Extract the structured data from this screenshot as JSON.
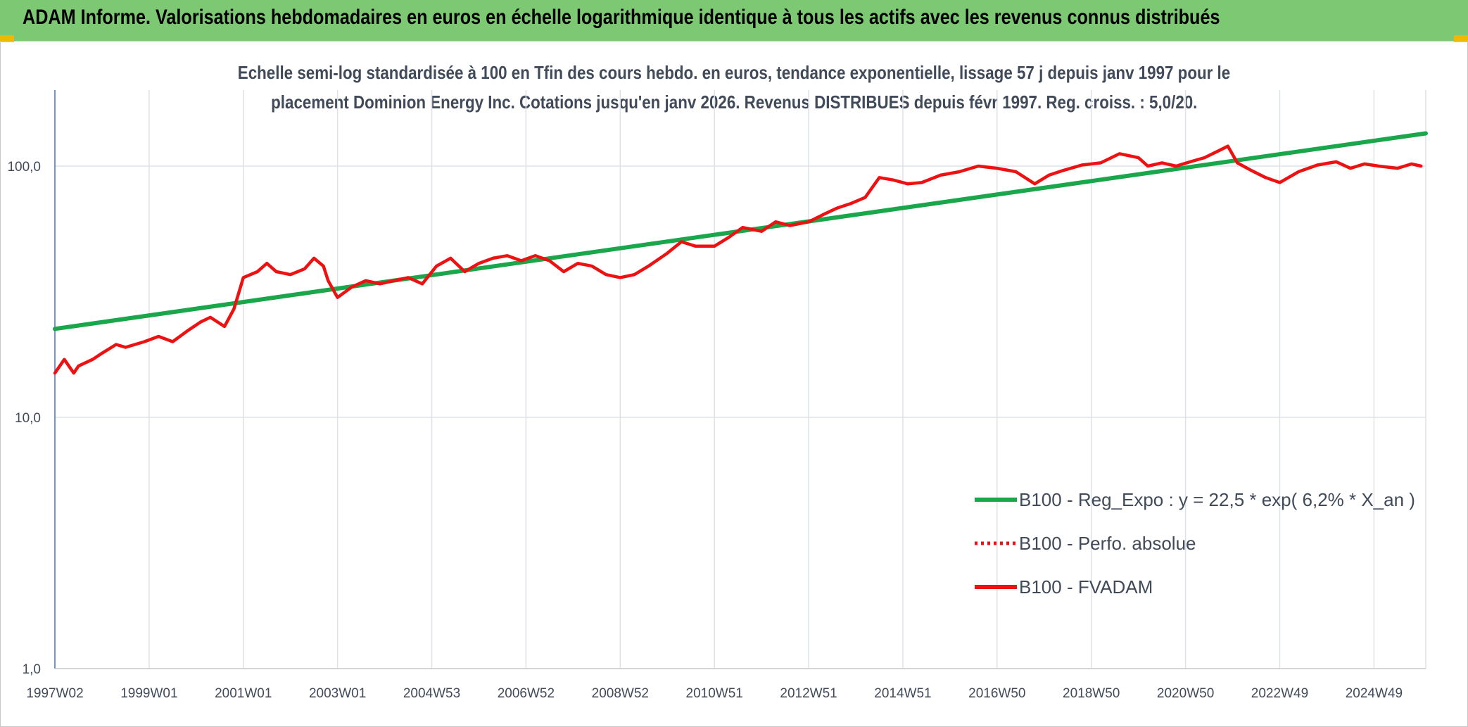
{
  "header": {
    "title": "ADAM Informe. Valorisations hebdomadaires en euros en échelle logarithmique identique à tous les actifs avec les revenus connus distribués"
  },
  "chart_data": {
    "type": "line",
    "title_line1": "Echelle semi-log standardisée à 100 en Tfin des cours hebdo. en euros, tendance exponentielle, lissage 57 j depuis janv 1997 pour le",
    "title_line2": "placement Dominion Energy Inc. Cotations jusqu'en janv 2026. Revenus DISTRIBUES depuis févr 1997. Reg. croiss. : 5,0/20.",
    "y_scale": "log",
    "ylim": [
      1,
      200
    ],
    "yticks": [
      1,
      10,
      100
    ],
    "ytick_labels": [
      "1,0",
      "10,0",
      "100,0"
    ],
    "x_range": [
      1997.0,
      2026.1
    ],
    "xticks": [
      1997.0,
      1999.0,
      2001.0,
      2003.0,
      2005.0,
      2007.0,
      2009.0,
      2011.0,
      2013.0,
      2015.0,
      2017.0,
      2019.0,
      2021.0,
      2023.0,
      2025.0
    ],
    "xtick_labels": [
      "1997W02",
      "1999W01",
      "2001W01",
      "2003W01",
      "2004W53",
      "2006W52",
      "2008W52",
      "2010W51",
      "2012W51",
      "2014W51",
      "2016W50",
      "2018W50",
      "2020W50",
      "2022W49",
      "2024W49"
    ],
    "legend_position": "bottom-right",
    "series": [
      {
        "name": "B100 - Reg_Expo : y = 22,5 * exp( 6,2% *  X_an )",
        "color": "#1aa64a",
        "style": "solid",
        "x": [
          1997.0,
          2026.1
        ],
        "values": [
          22.5,
          135
        ]
      },
      {
        "name": "B100 - Perfo. absolue",
        "color": "#ee1111",
        "style": "dotted",
        "x": [],
        "values": []
      },
      {
        "name": "B100 - FVADAM",
        "color": "#ee1111",
        "style": "solid",
        "x": [
          1997.0,
          1997.2,
          1997.4,
          1997.5,
          1997.8,
          1998.0,
          1998.3,
          1998.5,
          1998.9,
          1999.2,
          1999.5,
          1999.8,
          2000.1,
          2000.3,
          2000.6,
          2000.8,
          2001.0,
          2001.3,
          2001.5,
          2001.7,
          2002.0,
          2002.3,
          2002.5,
          2002.7,
          2002.8,
          2003.0,
          2003.3,
          2003.6,
          2003.9,
          2004.2,
          2004.5,
          2004.8,
          2005.1,
          2005.4,
          2005.7,
          2006.0,
          2006.3,
          2006.6,
          2006.9,
          2007.2,
          2007.5,
          2007.8,
          2008.1,
          2008.4,
          2008.7,
          2009.0,
          2009.3,
          2009.6,
          2010.0,
          2010.3,
          2010.6,
          2011.0,
          2011.3,
          2011.6,
          2012.0,
          2012.3,
          2012.6,
          2013.0,
          2013.3,
          2013.6,
          2013.9,
          2014.2,
          2014.5,
          2014.8,
          2015.1,
          2015.4,
          2015.8,
          2016.2,
          2016.6,
          2017.0,
          2017.4,
          2017.8,
          2018.1,
          2018.4,
          2018.8,
          2019.2,
          2019.6,
          2020.0,
          2020.2,
          2020.5,
          2020.8,
          2021.1,
          2021.4,
          2021.7,
          2021.9,
          2022.1,
          2022.4,
          2022.7,
          2023.0,
          2023.4,
          2023.8,
          2024.2,
          2024.5,
          2024.8,
          2025.1,
          2025.5,
          2025.8,
          2026.0
        ],
        "values": [
          15,
          17,
          15,
          16,
          17,
          18,
          19.5,
          19,
          20,
          21,
          20,
          22,
          24,
          25,
          23,
          27,
          36,
          38,
          41,
          38,
          37,
          39,
          43,
          40,
          35,
          30,
          33,
          35,
          34,
          35,
          36,
          34,
          40,
          43,
          38,
          41,
          43,
          44,
          42,
          44,
          42,
          38,
          41,
          40,
          37,
          36,
          37,
          40,
          45,
          50,
          48,
          48,
          52,
          57,
          55,
          60,
          58,
          60,
          64,
          68,
          71,
          75,
          90,
          88,
          85,
          86,
          92,
          95,
          100,
          98,
          95,
          85,
          92,
          96,
          101,
          103,
          112,
          108,
          100,
          103,
          100,
          104,
          108,
          115,
          120,
          103,
          96,
          90,
          86,
          95,
          101,
          104,
          98,
          102,
          100,
          98,
          102,
          100
        ]
      }
    ]
  }
}
